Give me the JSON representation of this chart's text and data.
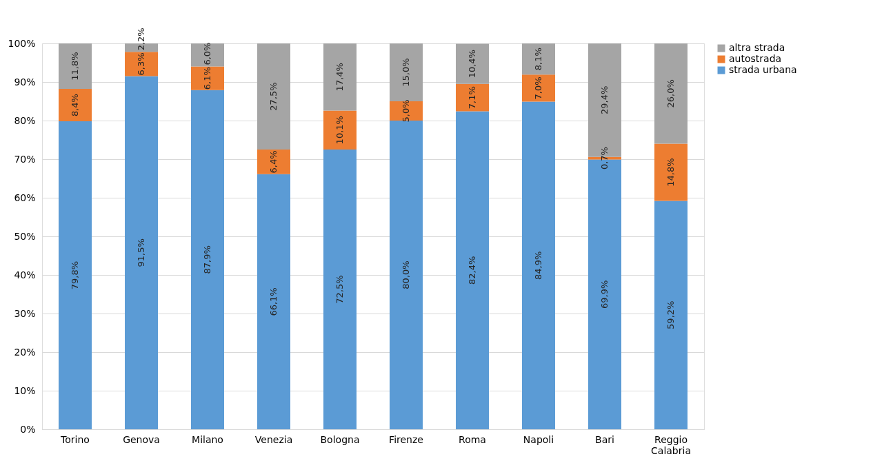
{
  "chart_data": {
    "type": "bar",
    "stacked": true,
    "categories": [
      "Torino",
      "Genova",
      "Milano",
      "Venezia",
      "Bologna",
      "Firenze",
      "Roma",
      "Napoli",
      "Bari",
      "Reggio Calabria"
    ],
    "series": [
      {
        "name": "strada urbana",
        "color": "#5b9bd5",
        "values": [
          79.8,
          91.5,
          87.9,
          66.1,
          72.5,
          80.0,
          82.4,
          84.9,
          69.9,
          59.2
        ],
        "value_labels": [
          "79,8%",
          "91,5%",
          "87,9%",
          "66,1%",
          "72,5%",
          "80,0%",
          "82,4%",
          "84,9%",
          "69,9%",
          "59,2%"
        ]
      },
      {
        "name": "autostrada",
        "color": "#ed7d31",
        "values": [
          8.4,
          6.3,
          6.1,
          6.4,
          10.1,
          5.0,
          7.1,
          7.0,
          0.7,
          14.8
        ],
        "value_labels": [
          "8,4%",
          "6,3%",
          "6,1%",
          "6,4%",
          "10,1%",
          "5,0%",
          "7,1%",
          "7,0%",
          "0,7%",
          "14,8%"
        ]
      },
      {
        "name": "altra strada",
        "color": "#a5a5a5",
        "values": [
          11.8,
          2.2,
          6.0,
          27.5,
          17.4,
          15.0,
          10.4,
          8.1,
          29.4,
          26.0
        ],
        "value_labels": [
          "11,8%",
          "2,2%",
          "6,0%",
          "27,5%",
          "17,4%",
          "15,0%",
          "10,4%",
          "8,1%",
          "29,4%",
          "26,0%"
        ]
      }
    ],
    "ylim": [
      0,
      100
    ],
    "yticks": [
      {
        "value": 0,
        "label": "0%"
      },
      {
        "value": 10,
        "label": "10%"
      },
      {
        "value": 20,
        "label": "20%"
      },
      {
        "value": 30,
        "label": "30%"
      },
      {
        "value": 40,
        "label": "40%"
      },
      {
        "value": 50,
        "label": "50%"
      },
      {
        "value": 60,
        "label": "60%"
      },
      {
        "value": 70,
        "label": "70%"
      },
      {
        "value": 80,
        "label": "80%"
      },
      {
        "value": 90,
        "label": "90%"
      },
      {
        "value": 100,
        "label": "100%"
      }
    ],
    "grid": "y",
    "legend": "right"
  }
}
